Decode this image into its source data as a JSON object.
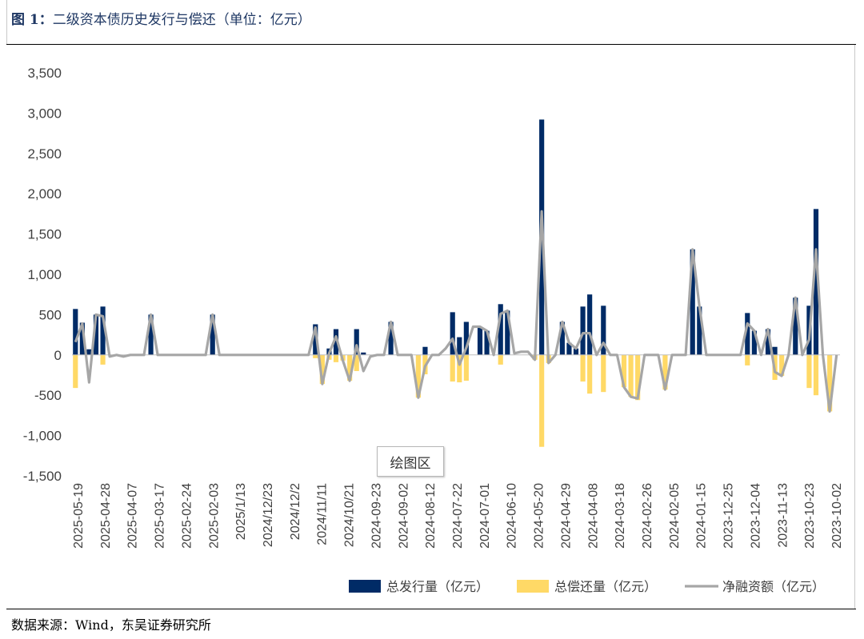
{
  "title_prefix": "图 1：",
  "title_text": "二级资本债历史发行与偿还（单位：亿元）",
  "source": "数据来源：Wind，东吴证券研究所",
  "plot_area_label": "绘图区",
  "colors": {
    "issuance": "#002b66",
    "repayment": "#ffd966",
    "net": "#a6a6a6",
    "title": "#1f3864"
  },
  "chart_data": {
    "type": "bar",
    "title": "二级资本债历史发行与偿还（单位：亿元）",
    "xlabel": "",
    "ylabel": "",
    "ylim": [
      -1500,
      3500
    ],
    "yticks": [
      3500,
      3000,
      2500,
      2000,
      1500,
      1000,
      500,
      0,
      -500,
      -1000,
      -1500
    ],
    "ytick_labels": [
      "3,500",
      "3,000",
      "2,500",
      "2,000",
      "1,500",
      "1,000",
      "500",
      "0",
      "-500",
      "-1,000",
      "-1,500"
    ],
    "xtick_labels": [
      "2025-05-19",
      "2025-04-28",
      "2025-04-07",
      "2025-03-17",
      "2025-02-24",
      "2025-02-03",
      "2025/1/13",
      "2024/12/23",
      "2024/12/2",
      "2024/11/11",
      "2024/10/21",
      "2024-09-23",
      "2024-09-02",
      "2024-08-12",
      "2024-07-22",
      "2024-07-01",
      "2024-06-10",
      "2024-05-20",
      "2024-04-29",
      "2024-04-08",
      "2024-03-18",
      "2024-02-26",
      "2024-02-05",
      "2024-01-15",
      "2023-12-25",
      "2023-12-04",
      "2023-11-13",
      "2023-10-23",
      "2023-10-02"
    ],
    "legend_position": "bottom-right",
    "series": [
      {
        "name": "总发行量（亿元）",
        "type": "bar",
        "values": [
          570,
          400,
          70,
          500,
          600,
          0,
          0,
          0,
          0,
          0,
          0,
          500,
          0,
          0,
          0,
          0,
          0,
          0,
          0,
          0,
          500,
          0,
          0,
          0,
          0,
          0,
          0,
          0,
          0,
          0,
          0,
          0,
          0,
          0,
          0,
          380,
          0,
          80,
          320,
          0,
          0,
          320,
          30,
          0,
          0,
          0,
          410,
          0,
          0,
          0,
          0,
          100,
          0,
          0,
          0,
          530,
          220,
          410,
          0,
          350,
          300,
          0,
          630,
          550,
          0,
          0,
          0,
          0,
          2920,
          0,
          0,
          410,
          150,
          80,
          600,
          750,
          0,
          610,
          0,
          0,
          0,
          0,
          0,
          0,
          0,
          0,
          0,
          0,
          0,
          0,
          1310,
          600,
          0,
          0,
          0,
          0,
          0,
          0,
          520,
          300,
          0,
          320,
          100,
          0,
          0,
          710,
          0,
          610,
          1810,
          0,
          0,
          0
        ]
      },
      {
        "name": "总偿还量（亿元）",
        "type": "bar",
        "values": [
          -410,
          0,
          0,
          0,
          -120,
          0,
          0,
          0,
          0,
          0,
          0,
          0,
          0,
          0,
          0,
          0,
          0,
          0,
          0,
          0,
          0,
          0,
          0,
          0,
          0,
          0,
          0,
          0,
          0,
          0,
          0,
          0,
          0,
          0,
          0,
          -40,
          -360,
          -60,
          -90,
          -70,
          -320,
          -200,
          0,
          0,
          0,
          0,
          0,
          0,
          0,
          0,
          -530,
          -240,
          0,
          0,
          0,
          -330,
          -340,
          -320,
          0,
          0,
          0,
          0,
          -120,
          0,
          0,
          0,
          0,
          -60,
          -1140,
          -100,
          0,
          0,
          0,
          0,
          -330,
          -480,
          0,
          -460,
          0,
          0,
          -400,
          -520,
          -560,
          0,
          0,
          0,
          -430,
          0,
          0,
          0,
          0,
          0,
          0,
          0,
          0,
          0,
          0,
          0,
          -130,
          0,
          0,
          0,
          -310,
          -260,
          0,
          0,
          0,
          -410,
          -500,
          0,
          -700,
          0
        ]
      },
      {
        "name": "净融资额（亿元）",
        "type": "line",
        "values": [
          160,
          390,
          -340,
          500,
          480,
          -20,
          0,
          -20,
          0,
          0,
          0,
          500,
          0,
          0,
          0,
          0,
          0,
          0,
          0,
          0,
          500,
          0,
          0,
          0,
          0,
          0,
          0,
          0,
          0,
          0,
          0,
          0,
          0,
          0,
          0,
          340,
          -360,
          20,
          230,
          -70,
          -320,
          120,
          -200,
          -20,
          0,
          0,
          410,
          0,
          0,
          0,
          -530,
          -140,
          0,
          0,
          80,
          200,
          -120,
          90,
          350,
          350,
          300,
          0,
          510,
          550,
          20,
          40,
          40,
          -60,
          1780,
          -100,
          0,
          410,
          150,
          80,
          270,
          270,
          0,
          150,
          0,
          0,
          -400,
          -520,
          -540,
          0,
          0,
          0,
          -430,
          0,
          0,
          0,
          1310,
          600,
          0,
          0,
          0,
          0,
          0,
          0,
          390,
          300,
          0,
          320,
          -210,
          -260,
          0,
          710,
          0,
          190,
          1310,
          0,
          -700,
          0
        ]
      }
    ]
  }
}
